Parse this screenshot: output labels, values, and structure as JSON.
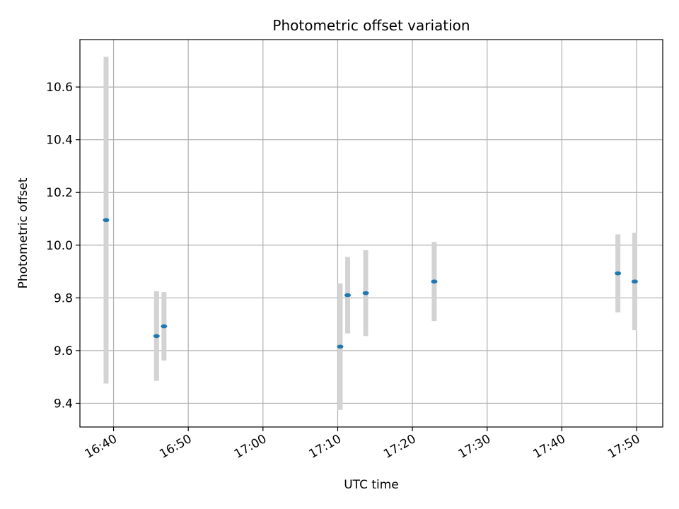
{
  "chart_data": {
    "type": "scatter",
    "title": "Photometric offset variation",
    "xlabel": "UTC time",
    "ylabel": "Photometric offset",
    "x_ticks": [
      "16:40",
      "16:50",
      "17:00",
      "17:10",
      "17:20",
      "17:30",
      "17:40",
      "17:50"
    ],
    "y_ticks": [
      "9.4",
      "9.6",
      "9.8",
      "10.0",
      "10.2",
      "10.4",
      "10.6"
    ],
    "xlim": [
      "16:35:30",
      "17:53:30"
    ],
    "ylim": [
      9.31,
      10.78
    ],
    "grid": true,
    "marker_color": "#1f77b4",
    "errorbar_color": "#d3d3d3",
    "points": [
      {
        "x": "16:39:00",
        "y": 10.095,
        "yerr": 0.62
      },
      {
        "x": "16:45:45",
        "y": 9.655,
        "yerr": 0.17
      },
      {
        "x": "16:46:45",
        "y": 9.692,
        "yerr": 0.13
      },
      {
        "x": "17:10:20",
        "y": 9.615,
        "yerr": 0.24
      },
      {
        "x": "17:11:20",
        "y": 9.81,
        "yerr": 0.145
      },
      {
        "x": "17:13:45",
        "y": 9.818,
        "yerr": 0.163
      },
      {
        "x": "17:22:55",
        "y": 9.862,
        "yerr": 0.15
      },
      {
        "x": "17:47:30",
        "y": 9.893,
        "yerr": 0.148
      },
      {
        "x": "17:49:45",
        "y": 9.862,
        "yerr": 0.185
      }
    ]
  }
}
